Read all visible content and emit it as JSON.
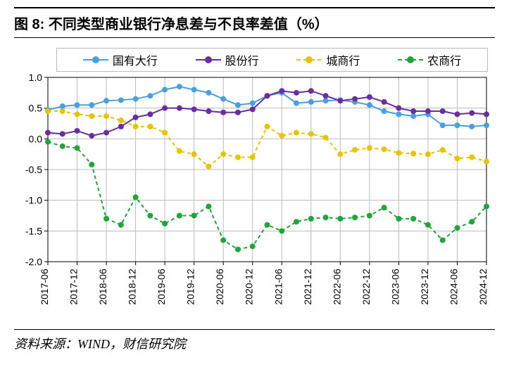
{
  "title": "图 8:  不同类型商业银行净息差与不良率差值（%）",
  "source": "资料来源：WIND，财信研究院",
  "chart": {
    "type": "line",
    "background_color": "#ffffff",
    "grid_color": "#bcbcbc",
    "axis_color": "#000000",
    "ylim": [
      -2.0,
      1.0
    ],
    "ytick_step": 0.5,
    "yticks": [
      -2.0,
      -1.5,
      -1.0,
      -0.5,
      0.0,
      0.5,
      1.0
    ],
    "ytick_labels": [
      "-2.0",
      "-1.5",
      "-1.0",
      "-0.5",
      "0.0",
      "0.5",
      "1.0"
    ],
    "label_fontsize": 14,
    "x_categories": [
      "2017-06",
      "2017-09",
      "2017-12",
      "2018-03",
      "2018-06",
      "2018-09",
      "2018-12",
      "2019-03",
      "2019-06",
      "2019-09",
      "2019-12",
      "2020-03",
      "2020-06",
      "2020-09",
      "2020-12",
      "2021-03",
      "2021-06",
      "2021-09",
      "2021-12",
      "2022-03",
      "2022-06",
      "2022-09",
      "2022-12",
      "2023-03",
      "2023-06",
      "2023-09",
      "2023-12",
      "2024-03",
      "2024-06",
      "2024-09",
      "2024-12"
    ],
    "x_tick_indices": [
      0,
      2,
      4,
      6,
      8,
      10,
      12,
      14,
      16,
      18,
      20,
      22,
      24,
      26,
      28,
      30
    ],
    "series": [
      {
        "name": "国有大行",
        "color": "#4a9fe0",
        "dash": "solid",
        "line_width": 2,
        "marker": "circle",
        "marker_size": 4,
        "values": [
          0.47,
          0.53,
          0.55,
          0.55,
          0.62,
          0.63,
          0.65,
          0.7,
          0.8,
          0.85,
          0.8,
          0.75,
          0.65,
          0.55,
          0.58,
          0.7,
          0.75,
          0.58,
          0.6,
          0.62,
          0.63,
          0.6,
          0.55,
          0.45,
          0.4,
          0.37,
          0.4,
          0.22,
          0.22,
          0.2,
          0.22
        ]
      },
      {
        "name": "股份行",
        "color": "#6a2ca0",
        "dash": "solid",
        "line_width": 2,
        "marker": "circle",
        "marker_size": 4,
        "values": [
          0.1,
          0.08,
          0.13,
          0.05,
          0.1,
          0.2,
          0.35,
          0.4,
          0.5,
          0.5,
          0.48,
          0.45,
          0.43,
          0.43,
          0.48,
          0.7,
          0.78,
          0.75,
          0.78,
          0.7,
          0.62,
          0.65,
          0.68,
          0.6,
          0.5,
          0.45,
          0.45,
          0.45,
          0.4,
          0.42,
          0.4
        ]
      },
      {
        "name": "城商行",
        "color": "#e6c400",
        "dash": "dashed",
        "line_width": 2,
        "marker": "circle",
        "marker_size": 4,
        "values": [
          0.45,
          0.45,
          0.4,
          0.37,
          0.37,
          0.3,
          0.2,
          0.2,
          0.1,
          -0.2,
          -0.25,
          -0.45,
          -0.25,
          -0.3,
          -0.3,
          0.2,
          0.05,
          0.1,
          0.08,
          0.02,
          -0.25,
          -0.18,
          -0.15,
          -0.17,
          -0.23,
          -0.24,
          -0.25,
          -0.18,
          -0.32,
          -0.3,
          -0.37
        ]
      },
      {
        "name": "农商行",
        "color": "#1fa53a",
        "dash": "dashed",
        "line_width": 2,
        "marker": "circle",
        "marker_size": 4,
        "values": [
          -0.05,
          -0.12,
          -0.15,
          -0.42,
          -1.3,
          -1.4,
          -0.95,
          -1.25,
          -1.38,
          -1.25,
          -1.25,
          -1.1,
          -1.65,
          -1.8,
          -1.75,
          -1.4,
          -1.5,
          -1.35,
          -1.3,
          -1.28,
          -1.3,
          -1.28,
          -1.25,
          -1.12,
          -1.3,
          -1.3,
          -1.4,
          -1.65,
          -1.45,
          -1.35,
          -1.1
        ]
      }
    ]
  }
}
